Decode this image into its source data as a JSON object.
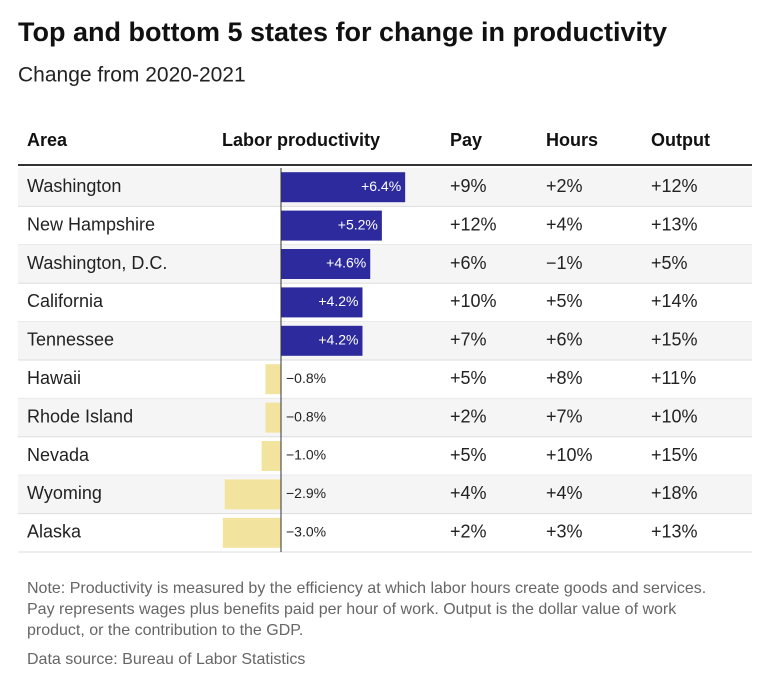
{
  "header": {
    "title": "Top and bottom 5 states for change in productivity",
    "subtitle": "Change from 2020-2021"
  },
  "table": {
    "columns": [
      "Area",
      "Labor productivity",
      "Pay",
      "Hours",
      "Output"
    ],
    "rows": [
      {
        "area": "Washington",
        "productivity": 6.4,
        "productivity_label": "+6.4%",
        "pay": "+9%",
        "hours": "+2%",
        "output": "+12%"
      },
      {
        "area": "New Hampshire",
        "productivity": 5.2,
        "productivity_label": "+5.2%",
        "pay": "+12%",
        "hours": "+4%",
        "output": "+13%"
      },
      {
        "area": "Washington, D.C.",
        "productivity": 4.6,
        "productivity_label": "+4.6%",
        "pay": "+6%",
        "hours": "−1%",
        "output": "+5%"
      },
      {
        "area": "California",
        "productivity": 4.2,
        "productivity_label": "+4.2%",
        "pay": "+10%",
        "hours": "+5%",
        "output": "+14%"
      },
      {
        "area": "Tennessee",
        "productivity": 4.2,
        "productivity_label": "+4.2%",
        "pay": "+7%",
        "hours": "+6%",
        "output": "+15%"
      },
      {
        "area": "Hawaii",
        "productivity": -0.8,
        "productivity_label": "−0.8%",
        "pay": "+5%",
        "hours": "+8%",
        "output": "+11%"
      },
      {
        "area": "Rhode Island",
        "productivity": -0.8,
        "productivity_label": "−0.8%",
        "pay": "+2%",
        "hours": "+7%",
        "output": "+10%"
      },
      {
        "area": "Nevada",
        "productivity": -1.0,
        "productivity_label": "−1.0%",
        "pay": "+5%",
        "hours": "+10%",
        "output": "+15%"
      },
      {
        "area": "Wyoming",
        "productivity": -2.9,
        "productivity_label": "−2.9%",
        "pay": "+4%",
        "hours": "+4%",
        "output": "+18%"
      },
      {
        "area": "Alaska",
        "productivity": -3.0,
        "productivity_label": "−3.0%",
        "pay": "+2%",
        "hours": "+3%",
        "output": "+13%"
      }
    ],
    "bar_colors": {
      "positive": "#2d2a9e",
      "negative": "#f2e49f"
    }
  },
  "footer": {
    "note": "Note: Productivity is measured by the efficiency at which labor hours create goods and services. Pay represents wages plus benefits paid per hour of work. Output is the dollar value of work product, or the contribution to the GDP.",
    "source": "Data source: Bureau of Labor Statistics"
  }
}
